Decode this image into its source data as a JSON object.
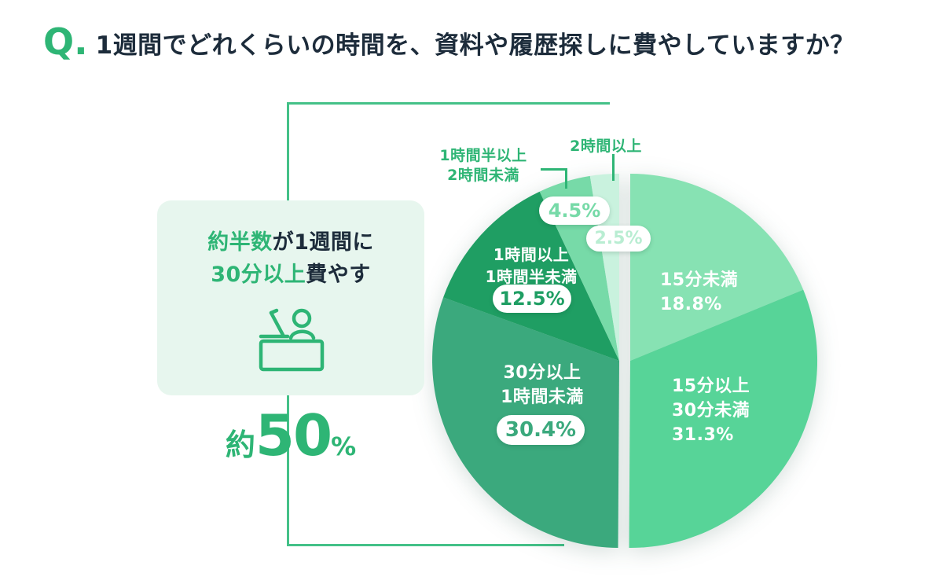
{
  "page": {
    "question_prefix": "Q.",
    "title": "1週間でどれくらいの時間を、資料や履歴探しに費やしていますか？"
  },
  "highlight_card": {
    "line1_accent": "約半数",
    "line1_rest": "が1週間に",
    "line2_accent": "30分以上",
    "line2_rest": "費やす",
    "stat_prefix": "約",
    "stat_value": "50",
    "stat_unit": "%"
  },
  "colors": {
    "accent_green": "#2eb575",
    "title_text": "#1d2c3b",
    "card_background": "#e7f6ee",
    "bracket_line": "#44c188",
    "pill_background": "#ffffff"
  },
  "chart_data": {
    "type": "pie",
    "unit": "%",
    "start_angle_deg": 0,
    "direction": "clockwise",
    "total": 100,
    "slices": [
      {
        "label": "15分未満",
        "value": 18.8,
        "display": "18.8%",
        "color": "#87e2b3",
        "exploded": true,
        "label_lines": [
          "15分未満"
        ]
      },
      {
        "label": "15分以上30分未満",
        "value": 31.3,
        "display": "31.3%",
        "color": "#57d498",
        "exploded": true,
        "label_lines": [
          "15分以上",
          "30分未満"
        ]
      },
      {
        "label": "30分以上1時間未満",
        "value": 30.4,
        "display": "30.4%",
        "color": "#3ba97d",
        "exploded": false,
        "label_lines": [
          "30分以上",
          "1時間未満"
        ]
      },
      {
        "label": "1時間以上1時間半未満",
        "value": 12.5,
        "display": "12.5%",
        "color": "#1f9e63",
        "exploded": false,
        "label_lines": [
          "1時間以上",
          "1時間半未満"
        ]
      },
      {
        "label": "1時間半以上2時間未満",
        "value": 4.5,
        "display": "4.5%",
        "color": "#77daa8",
        "exploded": false,
        "label_lines": [
          "1時間半以上",
          "2時間未満"
        ]
      },
      {
        "label": "2時間以上",
        "value": 2.5,
        "display": "2.5%",
        "color": "#c9f2de",
        "exploded": false,
        "label_lines": [
          "2時間以上"
        ]
      }
    ]
  }
}
